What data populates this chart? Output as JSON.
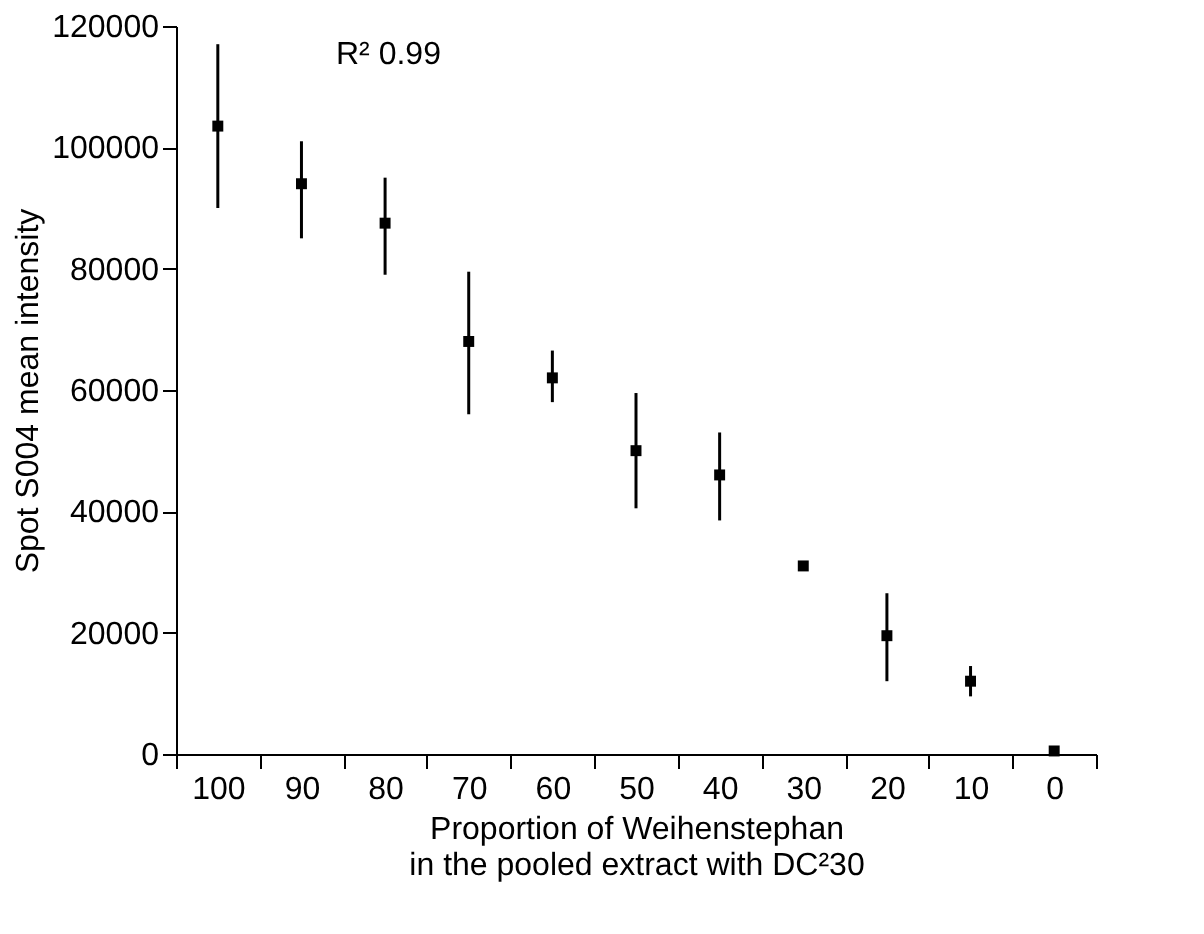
{
  "chart_data": {
    "type": "scatter",
    "xlabel": "Proportion of Weihenstephan\nin the pooled extract with DC²30",
    "ylabel": "Spot S004 mean intensity",
    "categories": [
      "100",
      "90",
      "80",
      "70",
      "60",
      "50",
      "40",
      "30",
      "20",
      "10",
      "0"
    ],
    "values": [
      103500,
      94000,
      87500,
      68000,
      62000,
      50000,
      46000,
      31000,
      19500,
      12000,
      500
    ],
    "errors": [
      [
        90000,
        117000
      ],
      [
        85000,
        101000
      ],
      [
        79000,
        95000
      ],
      [
        56000,
        79500
      ],
      [
        58000,
        66500
      ],
      [
        40500,
        59500
      ],
      [
        38500,
        53000
      ],
      null,
      [
        12000,
        26500
      ],
      [
        9500,
        14500
      ],
      null
    ],
    "color": "#000000",
    "marker": "square",
    "ylim": [
      0,
      120000
    ],
    "yticks": [
      0,
      20000,
      40000,
      60000,
      80000,
      100000,
      120000
    ],
    "grid": false,
    "annotations": [
      "R² 0.99"
    ]
  }
}
